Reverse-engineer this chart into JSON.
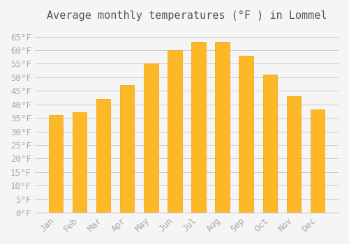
{
  "title": "Average monthly temperatures (°F ) in Lommel",
  "months": [
    "Jan",
    "Feb",
    "Mar",
    "Apr",
    "May",
    "Jun",
    "Jul",
    "Aug",
    "Sep",
    "Oct",
    "Nov",
    "Dec"
  ],
  "values": [
    36,
    37,
    42,
    47,
    55,
    60,
    63,
    63,
    58,
    51,
    43,
    38
  ],
  "bar_color": "#FDB827",
  "bar_edge_color": "#F0A010",
  "background_color": "#F5F5F5",
  "grid_color": "#CCCCCC",
  "ylim": [
    0,
    68
  ],
  "ytick_step": 5,
  "title_fontsize": 11,
  "tick_fontsize": 9,
  "tick_label_color": "#AAAAAA",
  "title_color": "#555555"
}
